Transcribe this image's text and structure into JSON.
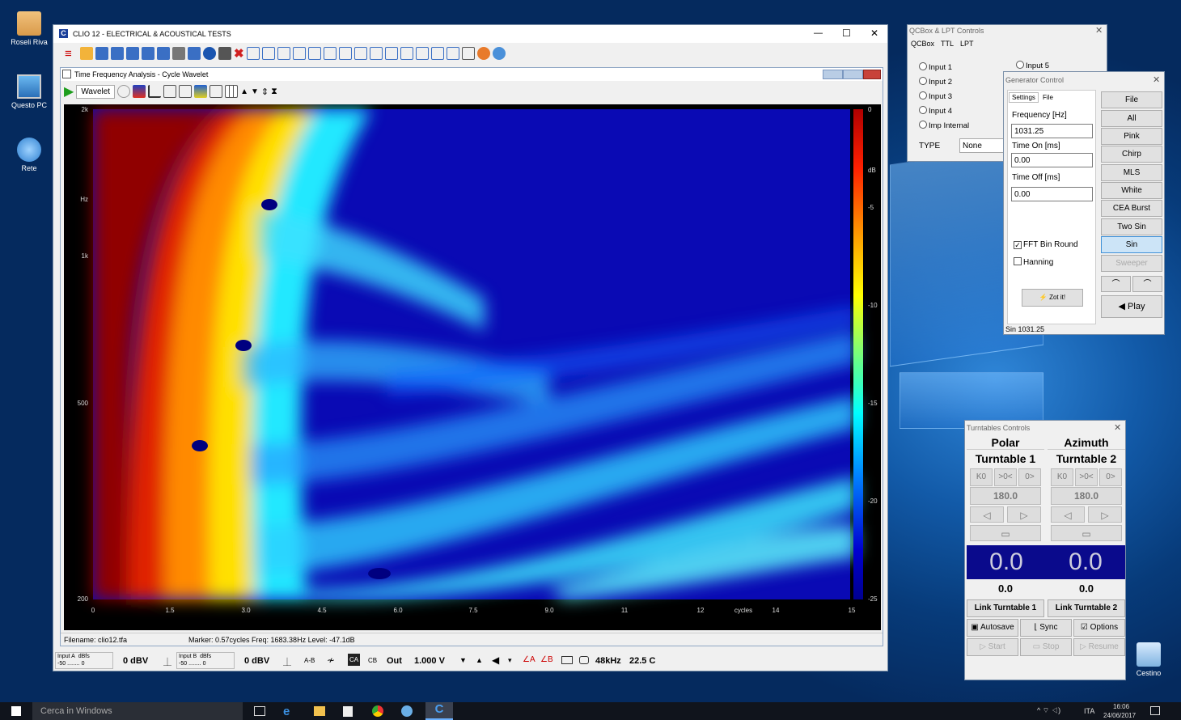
{
  "desktop": {
    "icons": [
      {
        "label": "Roseli Riva"
      },
      {
        "label": "Questo PC"
      },
      {
        "label": "Rete"
      },
      {
        "label": "Cestino"
      }
    ]
  },
  "main": {
    "title": "CLIO 12 - ELECTRICAL & ACOUSTICAL TESTS",
    "minimize": "—",
    "maximize": "☐",
    "close": "✕"
  },
  "tfa": {
    "title": "Time Frequency Analysis - Cycle Wavelet",
    "wavelet_label": "Wavelet",
    "y_ticks": [
      "2k",
      "Hz",
      "1k",
      "500",
      "200"
    ],
    "x_ticks": [
      "0",
      "1.5",
      "3.0",
      "4.5",
      "6.0",
      "7.5",
      "9.0",
      "11",
      "12",
      "14",
      "15"
    ],
    "x_unit": "cycles",
    "cb_ticks": [
      "0",
      "dB",
      "-5",
      "-10",
      "-15",
      "-20",
      "-25"
    ],
    "filename": "Filename: clio12.tfa",
    "marker": "Marker: 0.57cycles Freq: 1683.38Hz Level: -47.1dB"
  },
  "bottom": {
    "input_a": "Input A",
    "input_b": "Input B",
    "dbfs": "dBfs",
    "scale_lo": "-50",
    "scale_hi": "0",
    "dbv_a": "0 dBV",
    "dbv_b": "0 dBV",
    "ab": "A-B",
    "ca": "CA",
    "cb": "CB",
    "out": "Out",
    "level": "1.000 V",
    "rate": "48kHz",
    "temp": "22.5 C"
  },
  "qcbox": {
    "title": "QCBox & LPT Controls",
    "tabs": [
      "QCBox",
      "TTL",
      "LPT"
    ],
    "inputs": [
      "Input 1",
      "Input 2",
      "Input 3",
      "Input 4",
      "Imp Internal"
    ],
    "input5": "Input 5",
    "type_label": "TYPE",
    "type_value": "None"
  },
  "gen": {
    "title": "Generator Control",
    "tabs": [
      "Settings",
      "File"
    ],
    "freq_label": "Frequency [Hz]",
    "freq": "1031.25",
    "on_label": "Time On [ms]",
    "on": "0.00",
    "off_label": "Time Off [ms]",
    "off": "0.00",
    "fft": "FFT Bin Round",
    "hanning": "Hanning",
    "zot": "Zot it!",
    "buttons": [
      "File",
      "All",
      "Pink",
      "Chirp",
      "MLS",
      "White",
      "CEA Burst",
      "Two Sin",
      "Sin",
      "Sweeper"
    ],
    "play": "Play",
    "status": "Sin 1031.25"
  },
  "turn": {
    "title": "Turntables Controls",
    "col1": "Polar",
    "col2": "Azimuth",
    "t1": "Turntable 1",
    "t2": "Turntable 2",
    "angle1": "180.0",
    "angle2": "180.0",
    "big1": "0.0",
    "big2": "0.0",
    "val1": "0.0",
    "val2": "0.0",
    "link1": "Link Turntable 1",
    "link2": "Link Turntable 2",
    "autosave": "Autosave",
    "sync": "Sync",
    "options": "Options",
    "start": "Start",
    "stop": "Stop",
    "resume": "Resume"
  },
  "taskbar": {
    "search": "Cerca in Windows",
    "lang": "ITA",
    "time": "16:06",
    "date": "24/06/2017"
  },
  "colors": {
    "accent": "#cc2222",
    "plot_bg": "#0a0ac0",
    "titlebar": "#ffffff"
  }
}
